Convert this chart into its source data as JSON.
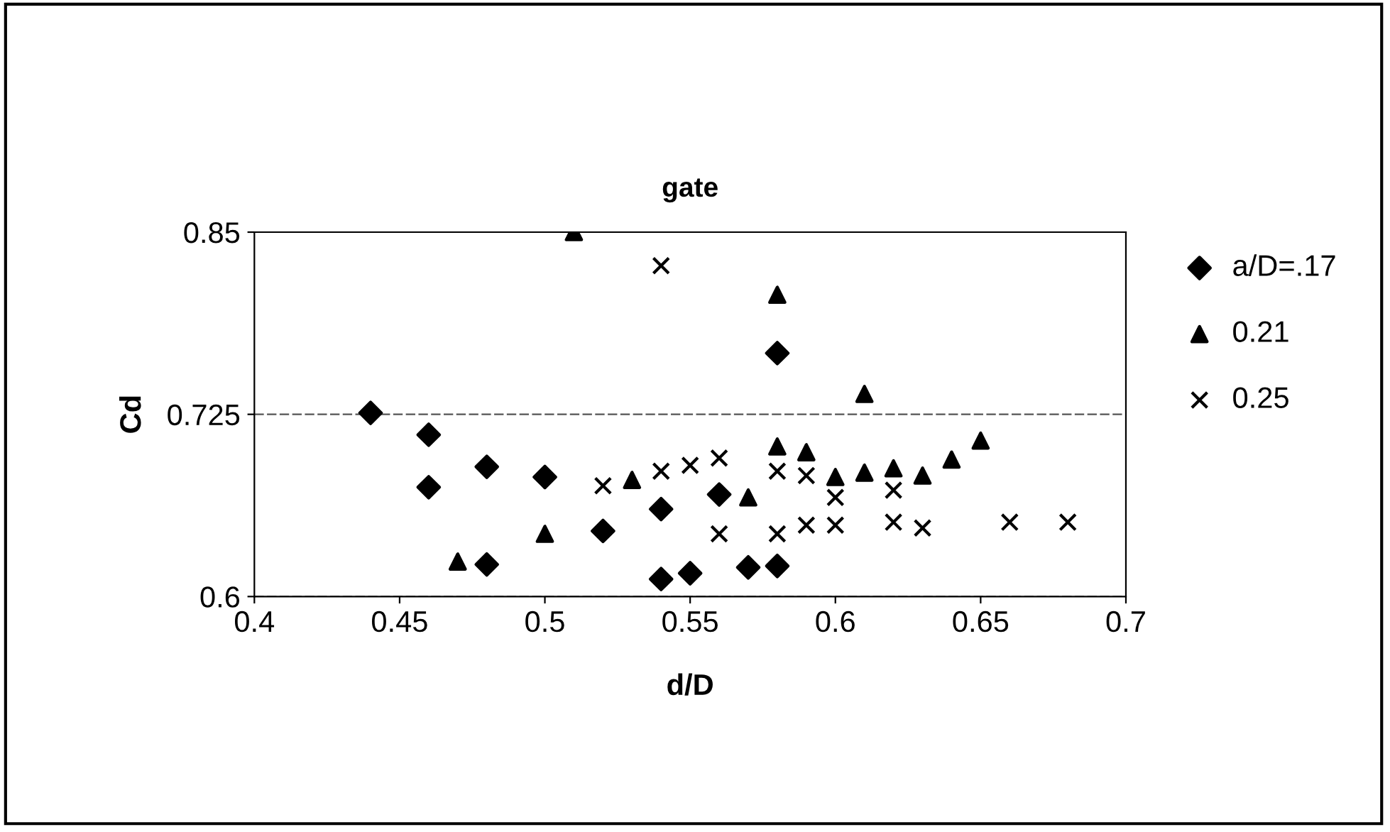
{
  "chart_data": {
    "type": "scatter",
    "title": "gate",
    "xlabel": "d/D",
    "ylabel": "Cd",
    "xlim": [
      0.4,
      0.7
    ],
    "xticks": [
      0.4,
      0.45,
      0.5,
      0.55,
      0.6,
      0.65,
      0.7
    ],
    "ylim": [
      0.6,
      0.85
    ],
    "yticks": [
      0.6,
      0.725,
      0.85
    ],
    "grid": "y",
    "legend": "right",
    "series": [
      {
        "name": "a/D=.17",
        "color": "#000000",
        "marker": "diamond",
        "x": [
          0.44,
          0.46,
          0.46,
          0.48,
          0.48,
          0.5,
          0.52,
          0.54,
          0.54,
          0.55,
          0.56,
          0.57,
          0.58,
          0.58
        ],
        "values": [
          0.726,
          0.711,
          0.675,
          0.689,
          0.622,
          0.682,
          0.645,
          0.66,
          0.612,
          0.616,
          0.67,
          0.62,
          0.767,
          0.621
        ]
      },
      {
        "name": "0.21",
        "color": "#000000",
        "marker": "triangle",
        "x": [
          0.47,
          0.5,
          0.51,
          0.53,
          0.57,
          0.58,
          0.58,
          0.59,
          0.6,
          0.61,
          0.61,
          0.62,
          0.63,
          0.64,
          0.65
        ],
        "values": [
          0.624,
          0.643,
          0.85,
          0.68,
          0.668,
          0.807,
          0.703,
          0.699,
          0.682,
          0.739,
          0.685,
          0.688,
          0.683,
          0.694,
          0.707
        ]
      },
      {
        "name": "0.25",
        "color": "#000000",
        "marker": "cross",
        "x": [
          0.52,
          0.54,
          0.54,
          0.55,
          0.56,
          0.56,
          0.58,
          0.58,
          0.59,
          0.59,
          0.6,
          0.6,
          0.62,
          0.62,
          0.63,
          0.66,
          0.68
        ],
        "values": [
          0.676,
          0.686,
          0.827,
          0.69,
          0.695,
          0.643,
          0.686,
          0.643,
          0.683,
          0.649,
          0.668,
          0.649,
          0.673,
          0.651,
          0.647,
          0.651,
          0.651
        ]
      }
    ]
  }
}
